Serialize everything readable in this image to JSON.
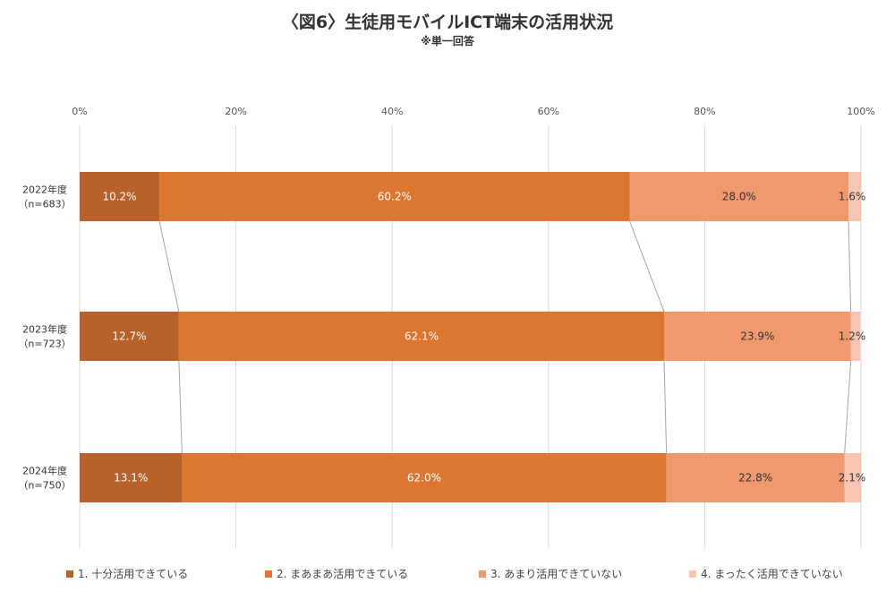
{
  "title": "〈図6〉生徒用モバイルICT端末の活用状況",
  "subtitle": "※単一回答",
  "chart_data": {
    "type": "bar",
    "orientation": "horizontal",
    "stacked": "percent",
    "categories": [
      {
        "label": "2022年度",
        "n": "（n=683）"
      },
      {
        "label": "2023年度",
        "n": "（n=723）"
      },
      {
        "label": "2024年度",
        "n": "（n=750）"
      }
    ],
    "series": [
      {
        "name": "1. 十分活用できている",
        "color": "#b8612a",
        "values": [
          10.2,
          12.7,
          13.1
        ],
        "labels": [
          "10.2%",
          "12.7%",
          "13.1%"
        ],
        "label_color": "#ffffff"
      },
      {
        "name": "2. まあまあ活用できている",
        "color": "#dd7630",
        "values": [
          60.2,
          62.1,
          62.0
        ],
        "labels": [
          "60.2%",
          "62.1%",
          "62.0%"
        ],
        "label_color": "#ffffff"
      },
      {
        "name": "3. あまり活用できていない",
        "color": "#f0986e",
        "values": [
          28.0,
          23.9,
          22.8
        ],
        "labels": [
          "28.0%",
          "23.9%",
          "22.8%"
        ],
        "label_color": "#333333"
      },
      {
        "name": "4. まったく活用できていない",
        "color": "#f7c6b2",
        "values": [
          1.6,
          1.2,
          2.1
        ],
        "labels": [
          "1.6%",
          "1.2%",
          "2.1%"
        ],
        "label_color": "#333333"
      }
    ],
    "x_ticks": [
      "0%",
      "20%",
      "40%",
      "60%",
      "80%",
      "100%"
    ],
    "xlim": [
      0,
      100
    ],
    "grid": true,
    "series_connector_lines": true,
    "legend_position": "bottom"
  }
}
